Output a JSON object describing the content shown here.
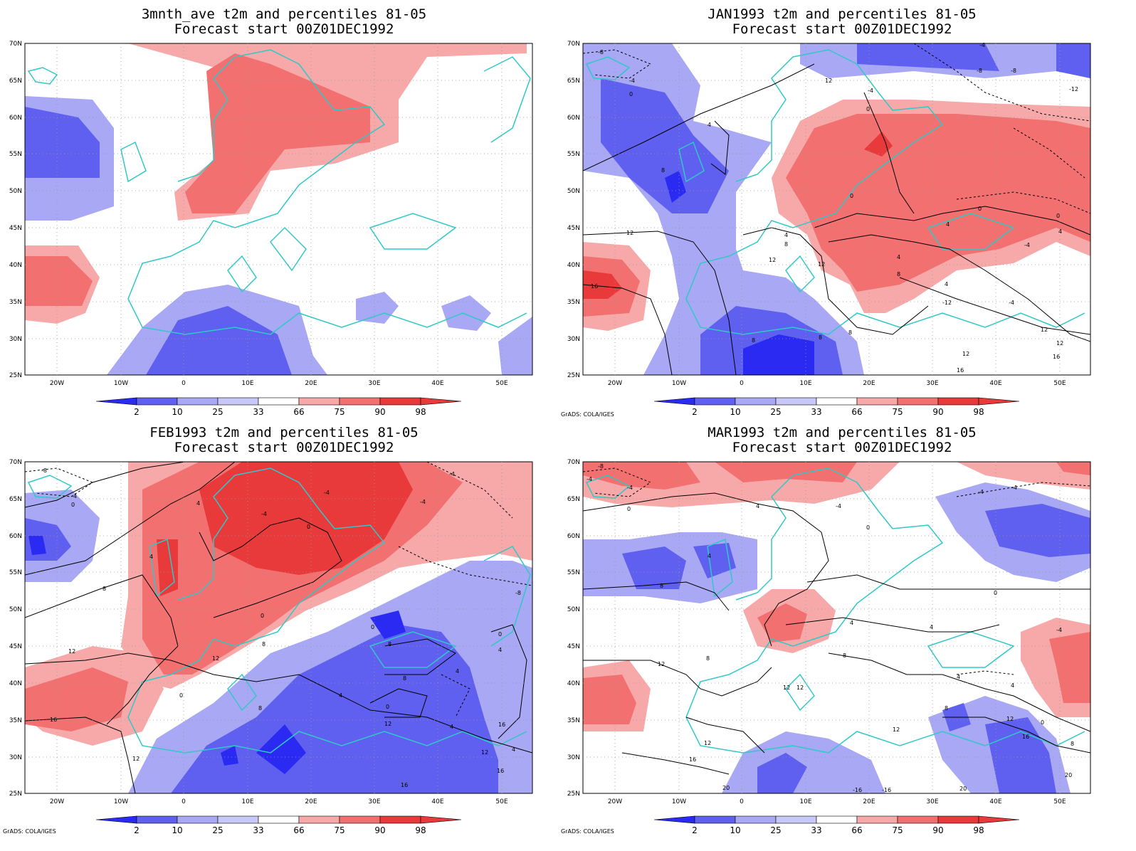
{
  "colors": {
    "blue_dark": "#2a2af2",
    "blue_mid": "#6060f0",
    "blue_light": "#a8a8f4",
    "red_light": "#f7a9a9",
    "red_mid": "#f27070",
    "red_dark": "#e83a3a",
    "coast": "#30c8c8",
    "contour": "#000000"
  },
  "credit": "GrADS: COLA/IGES",
  "lat_labels": [
    "70N",
    "65N",
    "60N",
    "55N",
    "50N",
    "45N",
    "40N",
    "35N",
    "30N",
    "25N"
  ],
  "lon_labels": [
    "20W",
    "10W",
    "0",
    "10E",
    "20E",
    "30E",
    "40E",
    "50E"
  ],
  "colorbar_labels": [
    "2",
    "10",
    "25",
    "33",
    "66",
    "75",
    "90",
    "98"
  ],
  "panels": [
    {
      "title1": "3mnth_ave t2m and percentiles 81-05",
      "title2": "Forecast start 00Z01DEC1992"
    },
    {
      "title1": "JAN1993 t2m and percentiles 81-05",
      "title2": "Forecast start 00Z01DEC1992"
    },
    {
      "title1": "FEB1993 t2m and percentiles 81-05",
      "title2": "Forecast start 00Z01DEC1992"
    },
    {
      "title1": "MAR1993 t2m and percentiles 81-05",
      "title2": "Forecast start 00Z01DEC1992"
    }
  ],
  "contour_labels": {
    "p1": [
      "-4",
      "-8",
      "-8",
      "-12",
      "-4",
      "-4",
      "-8",
      "4",
      "0",
      "0",
      "4",
      "8",
      "4",
      "0",
      "4",
      "-4",
      "12",
      "8",
      "4",
      "12",
      "4",
      "8",
      "12",
      "16",
      "0",
      "4",
      "8",
      "12",
      "12",
      "16",
      "16",
      "-4",
      "-12",
      "-8",
      "0",
      "12",
      "8",
      "8",
      "12"
    ],
    "p2": [
      "-8",
      "-4",
      "0",
      "4",
      "-4",
      "-4",
      "0",
      "-8",
      "4",
      "8",
      "0",
      "0",
      "8",
      "12",
      "12",
      "16",
      "4",
      "8",
      "-4",
      "4",
      "0",
      "4",
      "0",
      "8",
      "12",
      "4",
      "12",
      "16",
      "16",
      "-8",
      "0"
    ],
    "p3": [
      "-8",
      "-4",
      "-4",
      "0",
      "4",
      "4",
      "8",
      "-4",
      "0",
      "-4",
      "8",
      "12",
      "4",
      "4",
      "0",
      "8",
      "16",
      "12",
      "-4",
      "-4",
      "4",
      "4",
      "12",
      "16",
      "20",
      "16",
      "20",
      "-16",
      "-16",
      "0",
      "0"
    ]
  }
}
